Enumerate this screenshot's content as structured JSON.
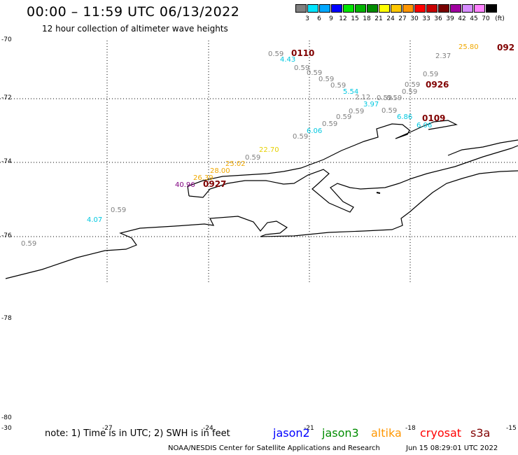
{
  "header": {
    "title": "00:00 – 11:59 UTC 06/13/2022",
    "subtitle": "12 hour collection of altimeter wave heights"
  },
  "colorbar": {
    "unit": "(ft)",
    "labels": [
      "3",
      "6",
      "9",
      "12",
      "15",
      "18",
      "21",
      "24",
      "27",
      "30",
      "33",
      "36",
      "39",
      "42",
      "45",
      "70"
    ],
    "colors": [
      "#808080",
      "#00e5ff",
      "#00a8ff",
      "#0000ff",
      "#00e600",
      "#00b400",
      "#008c00",
      "#ffff00",
      "#ffc800",
      "#ff9600",
      "#ff0000",
      "#c80000",
      "#780000",
      "#a000a0",
      "#d78cff",
      "#ff82ff",
      "#000000"
    ]
  },
  "map": {
    "lat_labels": [
      "-70",
      "-72",
      "-74",
      "-76",
      "-78",
      "-80"
    ],
    "lon_labels": [
      "-30",
      "-27",
      "-24",
      "-21",
      "-18",
      "-15"
    ],
    "annotations": [
      {
        "text": "0.59",
        "color": "#808080"
      },
      {
        "text": "0110",
        "color": "#800000"
      },
      {
        "text": "4.43",
        "color": "#00c8e0"
      },
      {
        "text": "0.59",
        "color": "#808080"
      },
      {
        "text": "0.59",
        "color": "#808080"
      },
      {
        "text": "0.59",
        "color": "#808080"
      },
      {
        "text": "0.59",
        "color": "#808080"
      },
      {
        "text": "5.54",
        "color": "#00c8e0"
      },
      {
        "text": "2.12",
        "color": "#808080"
      },
      {
        "text": "0.59",
        "color": "#808080"
      },
      {
        "text": "3.97",
        "color": "#00c8e0"
      },
      {
        "text": "0.59",
        "color": "#808080"
      },
      {
        "text": "0.59",
        "color": "#808080"
      },
      {
        "text": "0.59",
        "color": "#808080"
      },
      {
        "text": "0.59",
        "color": "#808080"
      },
      {
        "text": "0.59",
        "color": "#808080"
      },
      {
        "text": "0.59",
        "color": "#808080"
      },
      {
        "text": "2.37",
        "color": "#808080"
      },
      {
        "text": "25.80",
        "color": "#f0a800"
      },
      {
        "text": "092",
        "color": "#800000"
      },
      {
        "text": "0926",
        "color": "#800000"
      },
      {
        "text": "6.86",
        "color": "#00c8e0"
      },
      {
        "text": "6.06",
        "color": "#00c8e0"
      },
      {
        "text": "0109",
        "color": "#800000"
      },
      {
        "text": "0.59",
        "color": "#808080"
      },
      {
        "text": "0.59",
        "color": "#808080"
      },
      {
        "text": "6.06",
        "color": "#00c8e0"
      },
      {
        "text": "0.59",
        "color": "#808080"
      },
      {
        "text": "22.70",
        "color": "#e6d000"
      },
      {
        "text": "0.59",
        "color": "#808080"
      },
      {
        "text": "25.02",
        "color": "#f0a800"
      },
      {
        "text": "28.00",
        "color": "#f0a800"
      },
      {
        "text": "26.39",
        "color": "#f0a800"
      },
      {
        "text": "40.96",
        "color": "#800080"
      },
      {
        "text": "0927",
        "color": "#800000"
      },
      {
        "text": "0.59",
        "color": "#808080"
      },
      {
        "text": "4.07",
        "color": "#00c8e0"
      },
      {
        "text": "0.59",
        "color": "#808080"
      }
    ]
  },
  "footer": {
    "note": "note: 1) Time is in UTC; 2) SWH is in feet",
    "satellites": [
      {
        "name": "jason2",
        "color": "#0000ff"
      },
      {
        "name": "jason3",
        "color": "#008c00"
      },
      {
        "name": "altika",
        "color": "#ff9600"
      },
      {
        "name": "cryosat",
        "color": "#ff0000"
      },
      {
        "name": "s3a",
        "color": "#800000"
      }
    ],
    "credit": "NOAA/NESDIS Center for Satellite Applications and Research",
    "generated": "Jun 15 08:29:01 UTC 2022"
  }
}
